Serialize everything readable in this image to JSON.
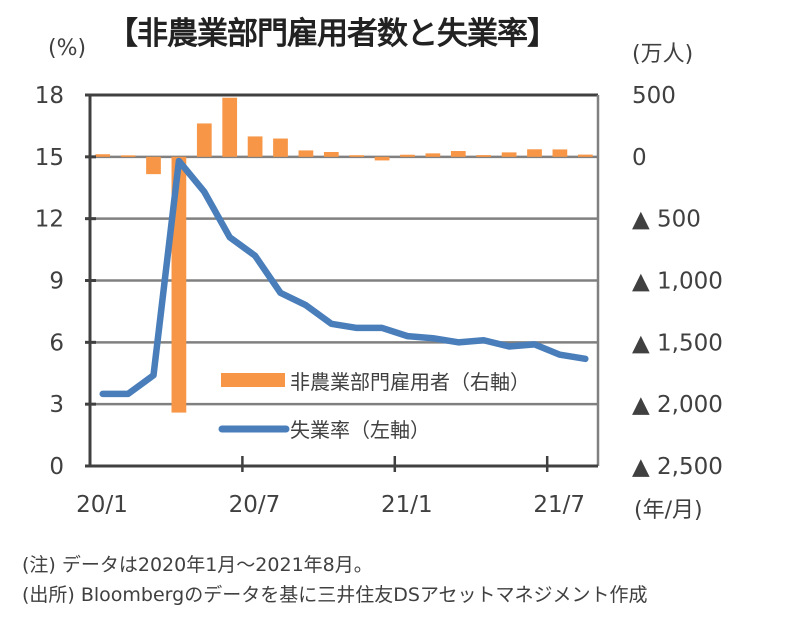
{
  "title": "【非農業部門雇用者数と失業率】",
  "units": {
    "left": "(%)",
    "right": "(万人)",
    "x": "(年/月)"
  },
  "colors": {
    "bar": "#F79646",
    "line": "#4A7EBB",
    "grid": "#808080",
    "axis": "#404040"
  },
  "notes": [
    "(注) データは2020年1月～2021年8月。",
    "(出所) Bloombergのデータを基に三井住友DSアセットマネジメント作成"
  ],
  "chart_data": {
    "type": "bar+line",
    "title": "【非農業部門雇用者数と失業率】",
    "x": [
      "20/1",
      "20/2",
      "20/3",
      "20/4",
      "20/5",
      "20/6",
      "20/7",
      "20/8",
      "20/9",
      "20/10",
      "20/11",
      "20/12",
      "21/1",
      "21/2",
      "21/3",
      "21/4",
      "21/5",
      "21/6",
      "21/7",
      "21/8"
    ],
    "x_tick_labels": [
      {
        "label": "20/1",
        "index": 0
      },
      {
        "label": "20/7",
        "index": 6
      },
      {
        "label": "21/1",
        "index": 12
      },
      {
        "label": "21/7",
        "index": 18
      }
    ],
    "series": [
      {
        "name": "非農業部門雇用者（右軸）",
        "type": "bar",
        "axis": "right",
        "values": [
          21,
          12,
          -140,
          -2068,
          270,
          478,
          165,
          148,
          52,
          39,
          13,
          -29,
          17,
          28,
          47,
          14,
          36,
          61,
          60,
          18
        ]
      },
      {
        "name": "失業率（左軸）",
        "type": "line",
        "axis": "left",
        "values": [
          3.5,
          3.5,
          4.4,
          14.8,
          13.3,
          11.1,
          10.2,
          8.4,
          7.8,
          6.9,
          6.7,
          6.7,
          6.3,
          6.2,
          6.0,
          6.1,
          5.8,
          5.9,
          5.4,
          5.2
        ]
      }
    ],
    "left_axis": {
      "label": "(%)",
      "ylim": [
        0,
        18
      ],
      "ticks": [
        0,
        3,
        6,
        9,
        12,
        15,
        18
      ],
      "tick_labels": [
        "0",
        "3",
        "6",
        "9",
        "12",
        "15",
        "18"
      ]
    },
    "right_axis": {
      "label": "(万人)",
      "ylim": [
        -2500,
        500
      ],
      "ticks": [
        500,
        0,
        -500,
        -1000,
        -1500,
        -2000,
        -2500
      ],
      "tick_labels": [
        "500",
        "0",
        "▲ 500",
        "▲ 1,000",
        "▲ 1,500",
        "▲ 2,000",
        "▲ 2,500"
      ]
    },
    "xlabel": "(年/月)",
    "grid": true,
    "legend": {
      "placement": "bottom-center-inside",
      "items": [
        "非農業部門雇用者（右軸）",
        "失業率（左軸）"
      ]
    }
  }
}
